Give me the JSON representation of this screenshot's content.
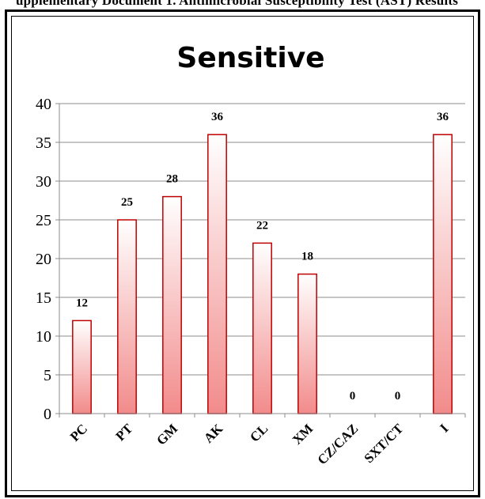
{
  "header": {
    "caption": "upplementary Document 1. Antimicrobial Susceptibility Test (AST) Results"
  },
  "chart_data": {
    "type": "bar",
    "title": "Sensitive",
    "categories": [
      "PC",
      "PT",
      "GM",
      "AK",
      "CL",
      "XM",
      "CZ/CAZ",
      "SXT/CT",
      "I"
    ],
    "values": [
      12,
      25,
      28,
      36,
      22,
      18,
      0,
      0,
      36
    ],
    "data_labels": [
      "12",
      "25",
      "28",
      "36",
      "22",
      "18",
      "0",
      "0",
      "36"
    ],
    "y_ticks": [
      "0",
      "5",
      "10",
      "15",
      "20",
      "25",
      "30",
      "35",
      "40"
    ],
    "ylim": [
      0,
      40
    ],
    "y_tick_step": 5,
    "grid": true,
    "legend": "none",
    "colors": {
      "bar_stroke": "#c00000",
      "bar_fill_light": "#ffffff",
      "bar_fill_dark": "#f28b8b",
      "grid": "#8c8c8c",
      "axis": "#8c8c8c",
      "text": "#000000"
    }
  }
}
